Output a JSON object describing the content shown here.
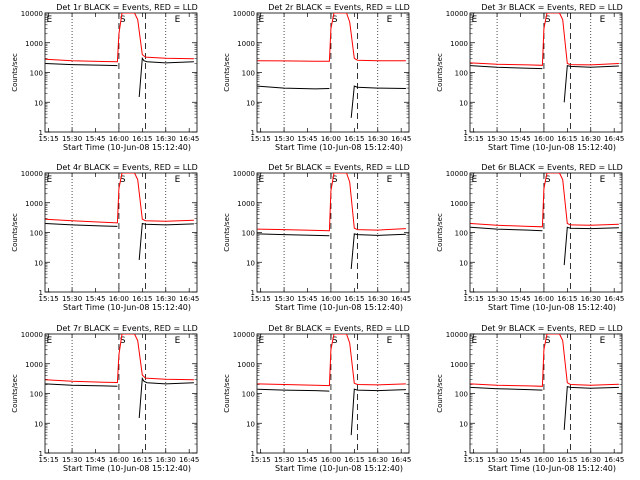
{
  "figure": {
    "xlabel": "Start Time (10-Jun-08 15:12:40)",
    "ylabel": "Counts/sec",
    "x_ticks": [
      "15:15",
      "15:30",
      "15:45",
      "16:00",
      "16:15",
      "16:30",
      "16:45"
    ],
    "y_ticks": [
      "1",
      "10",
      "100",
      "1000",
      "10000"
    ],
    "colors": {
      "events": "#000000",
      "lld": "#ff0000",
      "axes": "#000000"
    }
  },
  "chart_data": [
    {
      "type": "line",
      "title": "Det 1r BLACK = Events, RED = LLD",
      "xlabel": "Start Time (10-Jun-08 15:12:40)",
      "ylabel": "Counts/sec",
      "yscale": "log",
      "ylim": [
        1,
        10000
      ],
      "xlim": [
        "15:12:40",
        "16:50:00"
      ],
      "x_ticks": [
        "15:15",
        "15:30",
        "15:45",
        "16:00",
        "16:15",
        "16:30",
        "16:45"
      ],
      "y_ticks": [
        "1",
        "10",
        "100",
        "1000",
        "10000"
      ],
      "markers": {
        "E_left": "15:13",
        "S": "16:00",
        "E_right": "16:35"
      },
      "series": [
        {
          "name": "Events",
          "color": "#000000",
          "x": [
            "15:13",
            "15:30",
            "15:50",
            "15:59"
          ],
          "values": [
            200,
            185,
            175,
            170
          ],
          "x2": [
            "16:13",
            "16:15",
            "16:16",
            "16:18",
            "16:30",
            "16:48"
          ],
          "values2": [
            15,
            300,
            250,
            230,
            210,
            230
          ]
        },
        {
          "name": "LLD",
          "color": "#ff0000",
          "x": [
            "15:13",
            "15:30",
            "15:50",
            "15:59",
            "16:00",
            "16:02",
            "16:10",
            "16:12"
          ],
          "values": [
            280,
            250,
            235,
            230,
            2000,
            10000,
            10000,
            6000
          ],
          "x2": [
            "16:12",
            "16:15",
            "16:17",
            "16:30",
            "16:48"
          ],
          "values2": [
            6000,
            400,
            330,
            300,
            290
          ]
        }
      ]
    },
    {
      "type": "line",
      "title": "Det 2r BLACK = Events, RED = LLD",
      "xlabel": "Start Time (10-Jun-08 15:12:40)",
      "ylabel": "Counts/sec",
      "yscale": "log",
      "ylim": [
        1,
        10000
      ],
      "xlim": [
        "15:12:40",
        "16:50:00"
      ],
      "x_ticks": [
        "15:15",
        "15:30",
        "15:45",
        "16:00",
        "16:15",
        "16:30",
        "16:45"
      ],
      "y_ticks": [
        "1",
        "10",
        "100",
        "1000",
        "10000"
      ],
      "markers": {
        "E_left": "15:13",
        "S": "16:00",
        "E_right": "16:35"
      },
      "series": [
        {
          "name": "Events",
          "color": "#000000",
          "x": [
            "15:13",
            "15:30",
            "15:50",
            "15:59"
          ],
          "values": [
            35,
            30,
            28,
            29
          ],
          "x2": [
            "16:13",
            "16:15",
            "16:17",
            "16:30",
            "16:48"
          ],
          "values2": [
            3,
            35,
            32,
            30,
            29
          ]
        },
        {
          "name": "LLD",
          "color": "#ff0000",
          "x": [
            "15:13",
            "15:30",
            "15:50",
            "15:59",
            "16:00",
            "16:02",
            "16:10",
            "16:12"
          ],
          "values": [
            250,
            245,
            240,
            240,
            3000,
            10000,
            10000,
            5000
          ],
          "x2": [
            "16:12",
            "16:15",
            "16:17",
            "16:30",
            "16:48"
          ],
          "values2": [
            5000,
            300,
            260,
            250,
            250
          ]
        }
      ]
    },
    {
      "type": "line",
      "title": "Det 3r BLACK = Events, RED = LLD",
      "xlabel": "Start Time (10-Jun-08 15:12:40)",
      "ylabel": "Counts/sec",
      "yscale": "log",
      "ylim": [
        1,
        10000
      ],
      "xlim": [
        "15:12:40",
        "16:50:00"
      ],
      "x_ticks": [
        "15:15",
        "15:30",
        "15:45",
        "16:00",
        "16:15",
        "16:30",
        "16:45"
      ],
      "y_ticks": [
        "1",
        "10",
        "100",
        "1000",
        "10000"
      ],
      "markers": {
        "E_left": "15:13",
        "S": "16:00",
        "E_right": "16:35"
      },
      "series": [
        {
          "name": "Events",
          "color": "#000000",
          "x": [
            "15:13",
            "15:30",
            "15:50",
            "15:59"
          ],
          "values": [
            170,
            150,
            140,
            135
          ],
          "x2": [
            "16:13",
            "16:15",
            "16:17",
            "16:30",
            "16:48"
          ],
          "values2": [
            10,
            170,
            160,
            150,
            165
          ]
        },
        {
          "name": "LLD",
          "color": "#ff0000",
          "x": [
            "15:13",
            "15:30",
            "15:50",
            "15:59",
            "16:00",
            "16:02",
            "16:10",
            "16:12"
          ],
          "values": [
            210,
            190,
            180,
            175,
            3000,
            10000,
            10000,
            6000
          ],
          "x2": [
            "16:12",
            "16:15",
            "16:17",
            "16:30",
            "16:48"
          ],
          "values2": [
            6000,
            200,
            185,
            180,
            200
          ]
        }
      ]
    },
    {
      "type": "line",
      "title": "Det 4r BLACK = Events, RED = LLD",
      "xlabel": "Start Time (10-Jun-08 15:12:40)",
      "ylabel": "Counts/sec",
      "yscale": "log",
      "ylim": [
        1,
        10000
      ],
      "xlim": [
        "15:12:40",
        "16:50:00"
      ],
      "x_ticks": [
        "15:15",
        "15:30",
        "15:45",
        "16:00",
        "16:15",
        "16:30",
        "16:45"
      ],
      "y_ticks": [
        "1",
        "10",
        "100",
        "1000",
        "10000"
      ],
      "markers": {
        "E_left": "15:13",
        "S": "16:00",
        "E_right": "16:35"
      },
      "series": [
        {
          "name": "Events",
          "color": "#000000",
          "x": [
            "15:13",
            "15:30",
            "15:50",
            "15:59"
          ],
          "values": [
            200,
            180,
            165,
            160
          ],
          "x2": [
            "16:13",
            "16:15",
            "16:17",
            "16:30",
            "16:48"
          ],
          "values2": [
            12,
            200,
            190,
            180,
            195
          ]
        },
        {
          "name": "LLD",
          "color": "#ff0000",
          "x": [
            "15:13",
            "15:30",
            "15:50",
            "15:59",
            "16:00",
            "16:02",
            "16:10",
            "16:12"
          ],
          "values": [
            280,
            250,
            220,
            210,
            3000,
            10000,
            10000,
            6000
          ],
          "x2": [
            "16:12",
            "16:15",
            "16:17",
            "16:30",
            "16:48"
          ],
          "values2": [
            6000,
            280,
            250,
            240,
            260
          ]
        }
      ]
    },
    {
      "type": "line",
      "title": "Det 5r BLACK = Events, RED = LLD",
      "xlabel": "Start Time (10-Jun-08 15:12:40)",
      "ylabel": "Counts/sec",
      "yscale": "log",
      "ylim": [
        1,
        10000
      ],
      "xlim": [
        "15:12:40",
        "16:50:00"
      ],
      "x_ticks": [
        "15:15",
        "15:30",
        "15:45",
        "16:00",
        "16:15",
        "16:30",
        "16:45"
      ],
      "y_ticks": [
        "1",
        "10",
        "100",
        "1000",
        "10000"
      ],
      "markers": {
        "E_left": "15:13",
        "S": "16:00",
        "E_right": "16:35"
      },
      "series": [
        {
          "name": "Events",
          "color": "#000000",
          "x": [
            "15:13",
            "15:30",
            "15:50",
            "15:59"
          ],
          "values": [
            90,
            85,
            80,
            78
          ],
          "x2": [
            "16:13",
            "16:15",
            "16:17",
            "16:30",
            "16:48"
          ],
          "values2": [
            6,
            90,
            85,
            80,
            88
          ]
        },
        {
          "name": "LLD",
          "color": "#ff0000",
          "x": [
            "15:13",
            "15:30",
            "15:50",
            "15:59",
            "16:00",
            "16:02",
            "16:10",
            "16:12"
          ],
          "values": [
            130,
            125,
            118,
            115,
            2500,
            10000,
            10000,
            5000
          ],
          "x2": [
            "16:12",
            "16:15",
            "16:17",
            "16:30",
            "16:48"
          ],
          "values2": [
            5000,
            140,
            125,
            120,
            135
          ]
        }
      ]
    },
    {
      "type": "line",
      "title": "Det 6r BLACK = Events, RED = LLD",
      "xlabel": "Start Time (10-Jun-08 15:12:40)",
      "ylabel": "Counts/sec",
      "yscale": "log",
      "ylim": [
        1,
        10000
      ],
      "xlim": [
        "15:12:40",
        "16:50:00"
      ],
      "x_ticks": [
        "15:15",
        "15:30",
        "15:45",
        "16:00",
        "16:15",
        "16:30",
        "16:45"
      ],
      "y_ticks": [
        "1",
        "10",
        "100",
        "1000",
        "10000"
      ],
      "markers": {
        "E_left": "15:13",
        "S": "16:00",
        "E_right": "16:35"
      },
      "series": [
        {
          "name": "Events",
          "color": "#000000",
          "x": [
            "15:13",
            "15:30",
            "15:50",
            "15:59"
          ],
          "values": [
            150,
            130,
            120,
            115
          ],
          "x2": [
            "16:13",
            "16:15",
            "16:17",
            "16:30",
            "16:48"
          ],
          "values2": [
            8,
            150,
            140,
            135,
            145
          ]
        },
        {
          "name": "LLD",
          "color": "#ff0000",
          "x": [
            "15:13",
            "15:30",
            "15:50",
            "15:59",
            "16:00",
            "16:02",
            "16:10",
            "16:12"
          ],
          "values": [
            200,
            175,
            160,
            155,
            3000,
            10000,
            10000,
            6000
          ],
          "x2": [
            "16:12",
            "16:15",
            "16:17",
            "16:30",
            "16:48"
          ],
          "values2": [
            6000,
            200,
            180,
            175,
            190
          ]
        }
      ]
    },
    {
      "type": "line",
      "title": "Det 7r BLACK = Events, RED = LLD",
      "xlabel": "Start Time (10-Jun-08 15:12:40)",
      "ylabel": "Counts/sec",
      "yscale": "log",
      "ylim": [
        1,
        10000
      ],
      "xlim": [
        "15:12:40",
        "16:50:00"
      ],
      "x_ticks": [
        "15:15",
        "15:30",
        "15:45",
        "16:00",
        "16:15",
        "16:30",
        "16:45"
      ],
      "y_ticks": [
        "1",
        "10",
        "100",
        "1000",
        "10000"
      ],
      "markers": {
        "E_left": "15:13",
        "S": "16:00",
        "E_right": "16:35"
      },
      "series": [
        {
          "name": "Events",
          "color": "#000000",
          "x": [
            "15:13",
            "15:30",
            "15:50",
            "15:59"
          ],
          "values": [
            210,
            190,
            180,
            175
          ],
          "x2": [
            "16:13",
            "16:15",
            "16:16",
            "16:18",
            "16:30",
            "16:48"
          ],
          "values2": [
            15,
            320,
            260,
            230,
            210,
            230
          ]
        },
        {
          "name": "LLD",
          "color": "#ff0000",
          "x": [
            "15:13",
            "15:30",
            "15:50",
            "15:59",
            "16:00",
            "16:02",
            "16:10",
            "16:12"
          ],
          "values": [
            290,
            260,
            240,
            235,
            2000,
            10000,
            10000,
            6000
          ],
          "x2": [
            "16:12",
            "16:15",
            "16:17",
            "16:30",
            "16:48"
          ],
          "values2": [
            6000,
            420,
            330,
            300,
            290
          ]
        }
      ]
    },
    {
      "type": "line",
      "title": "Det 8r BLACK = Events, RED = LLD",
      "xlabel": "Start Time (10-Jun-08 15:12:40)",
      "ylabel": "Counts/sec",
      "yscale": "log",
      "ylim": [
        1,
        10000
      ],
      "xlim": [
        "15:12:40",
        "16:50:00"
      ],
      "x_ticks": [
        "15:15",
        "15:30",
        "15:45",
        "16:00",
        "16:15",
        "16:30",
        "16:45"
      ],
      "y_ticks": [
        "1",
        "10",
        "100",
        "1000",
        "10000"
      ],
      "markers": {
        "E_left": "15:13",
        "S": "16:00",
        "E_right": "16:35"
      },
      "series": [
        {
          "name": "Events",
          "color": "#000000",
          "x": [
            "15:13",
            "15:30",
            "15:50",
            "15:59"
          ],
          "values": [
            140,
            130,
            125,
            120
          ],
          "x2": [
            "16:13",
            "16:15",
            "16:17",
            "16:30",
            "16:48"
          ],
          "values2": [
            4,
            140,
            130,
            125,
            135
          ]
        },
        {
          "name": "LLD",
          "color": "#ff0000",
          "x": [
            "15:13",
            "15:30",
            "15:50",
            "15:59",
            "16:00",
            "16:02",
            "16:10",
            "16:12"
          ],
          "values": [
            210,
            200,
            190,
            185,
            3000,
            10000,
            10000,
            5000
          ],
          "x2": [
            "16:12",
            "16:15",
            "16:17",
            "16:30",
            "16:48"
          ],
          "values2": [
            5000,
            220,
            200,
            195,
            210
          ]
        }
      ]
    },
    {
      "type": "line",
      "title": "Det 9r BLACK = Events, RED = LLD",
      "xlabel": "Start Time (10-Jun-08 15:12:40)",
      "ylabel": "Counts/sec",
      "yscale": "log",
      "ylim": [
        1,
        10000
      ],
      "xlim": [
        "15:12:40",
        "16:50:00"
      ],
      "x_ticks": [
        "15:15",
        "15:30",
        "15:45",
        "16:00",
        "16:15",
        "16:30",
        "16:45"
      ],
      "y_ticks": [
        "1",
        "10",
        "100",
        "1000",
        "10000"
      ],
      "markers": {
        "E_left": "15:13",
        "S": "16:00",
        "E_right": "16:35"
      },
      "series": [
        {
          "name": "Events",
          "color": "#000000",
          "x": [
            "15:13",
            "15:30",
            "15:50",
            "15:59"
          ],
          "values": [
            160,
            145,
            135,
            130
          ],
          "x2": [
            "16:13",
            "16:15",
            "16:17",
            "16:30",
            "16:48"
          ],
          "values2": [
            6,
            170,
            160,
            150,
            160
          ]
        },
        {
          "name": "LLD",
          "color": "#ff0000",
          "x": [
            "15:13",
            "15:30",
            "15:50",
            "15:59",
            "16:00",
            "16:02",
            "16:10",
            "16:12"
          ],
          "values": [
            210,
            190,
            180,
            175,
            3000,
            10000,
            10000,
            6000
          ],
          "x2": [
            "16:12",
            "16:15",
            "16:17",
            "16:30",
            "16:48"
          ],
          "values2": [
            6000,
            230,
            200,
            190,
            205
          ]
        }
      ]
    }
  ]
}
